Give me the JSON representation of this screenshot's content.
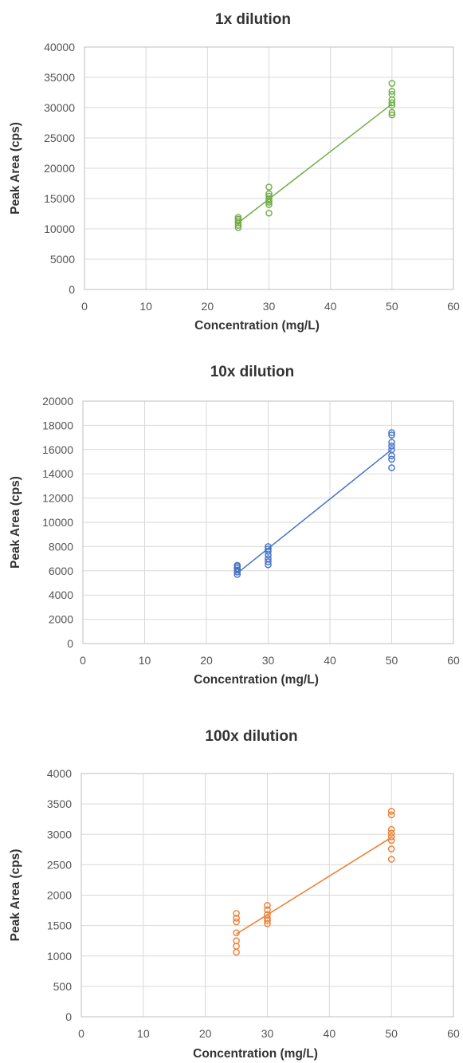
{
  "chart_data": [
    {
      "type": "scatter",
      "title": "1x dilution",
      "xlabel": "Concentration (mg/L)",
      "ylabel": "Peak Area (cps)",
      "xlim": [
        0,
        60
      ],
      "ylim": [
        0,
        40000
      ],
      "x_ticks": [
        0,
        10,
        20,
        30,
        40,
        50,
        60
      ],
      "y_ticks": [
        0,
        5000,
        10000,
        15000,
        20000,
        25000,
        30000,
        35000,
        40000
      ],
      "grid": true,
      "color": "#70ad47",
      "series": [
        {
          "points": [
            [
              25,
              10200
            ],
            [
              25,
              10600
            ],
            [
              25,
              11000
            ],
            [
              25,
              11300
            ],
            [
              25,
              11600
            ],
            [
              25,
              11900
            ],
            [
              30,
              12600
            ],
            [
              30,
              14000
            ],
            [
              30,
              14400
            ],
            [
              30,
              14700
            ],
            [
              30,
              15000
            ],
            [
              30,
              15400
            ],
            [
              30,
              15800
            ],
            [
              30,
              16900
            ],
            [
              50,
              28800
            ],
            [
              50,
              29200
            ],
            [
              50,
              30400
            ],
            [
              50,
              30800
            ],
            [
              50,
              31300
            ],
            [
              50,
              32200
            ],
            [
              50,
              32700
            ],
            [
              50,
              34000
            ]
          ]
        }
      ],
      "trendline": [
        [
          25,
          11000
        ],
        [
          50,
          30600
        ]
      ]
    },
    {
      "type": "scatter",
      "title": "10x dilution",
      "xlabel": "Concentration (mg/L)",
      "ylabel": "Peak Area (cps)",
      "xlim": [
        0,
        60
      ],
      "ylim": [
        0,
        20000
      ],
      "x_ticks": [
        0,
        10,
        20,
        30,
        40,
        50,
        60
      ],
      "y_ticks": [
        0,
        2000,
        4000,
        6000,
        8000,
        10000,
        12000,
        14000,
        16000,
        18000,
        20000
      ],
      "grid": true,
      "color": "#4472c4",
      "series": [
        {
          "points": [
            [
              25,
              5700
            ],
            [
              25,
              5900
            ],
            [
              25,
              6050
            ],
            [
              25,
              6200
            ],
            [
              25,
              6350
            ],
            [
              25,
              6450
            ],
            [
              30,
              6500
            ],
            [
              30,
              6750
            ],
            [
              30,
              7000
            ],
            [
              30,
              7300
            ],
            [
              30,
              7600
            ],
            [
              30,
              7800
            ],
            [
              30,
              8000
            ],
            [
              50,
              14500
            ],
            [
              50,
              15200
            ],
            [
              50,
              15500
            ],
            [
              50,
              16000
            ],
            [
              50,
              16300
            ],
            [
              50,
              16600
            ],
            [
              50,
              17200
            ],
            [
              50,
              17400
            ]
          ]
        }
      ],
      "trendline": [
        [
          25,
          5800
        ],
        [
          50,
          16000
        ]
      ]
    },
    {
      "type": "scatter",
      "title": "100x dilution",
      "xlabel": "Concentration (mg/L)",
      "ylabel": "Peak Area (cps)",
      "xlim": [
        0,
        60
      ],
      "ylim": [
        0,
        4000
      ],
      "x_ticks": [
        0,
        10,
        20,
        30,
        40,
        50,
        60
      ],
      "y_ticks": [
        0,
        500,
        1000,
        1500,
        2000,
        2500,
        3000,
        3500,
        4000
      ],
      "grid": true,
      "color": "#ed7d31",
      "series": [
        {
          "points": [
            [
              25,
              1060
            ],
            [
              25,
              1160
            ],
            [
              25,
              1250
            ],
            [
              25,
              1380
            ],
            [
              25,
              1560
            ],
            [
              25,
              1620
            ],
            [
              25,
              1700
            ],
            [
              30,
              1530
            ],
            [
              30,
              1580
            ],
            [
              30,
              1620
            ],
            [
              30,
              1680
            ],
            [
              30,
              1760
            ],
            [
              30,
              1830
            ],
            [
              50,
              2590
            ],
            [
              50,
              2760
            ],
            [
              50,
              2900
            ],
            [
              50,
              2960
            ],
            [
              50,
              3020
            ],
            [
              50,
              3080
            ],
            [
              50,
              3320
            ],
            [
              50,
              3380
            ]
          ]
        }
      ],
      "trendline": [
        [
          25,
          1360
        ],
        [
          50,
          2950
        ]
      ]
    }
  ]
}
